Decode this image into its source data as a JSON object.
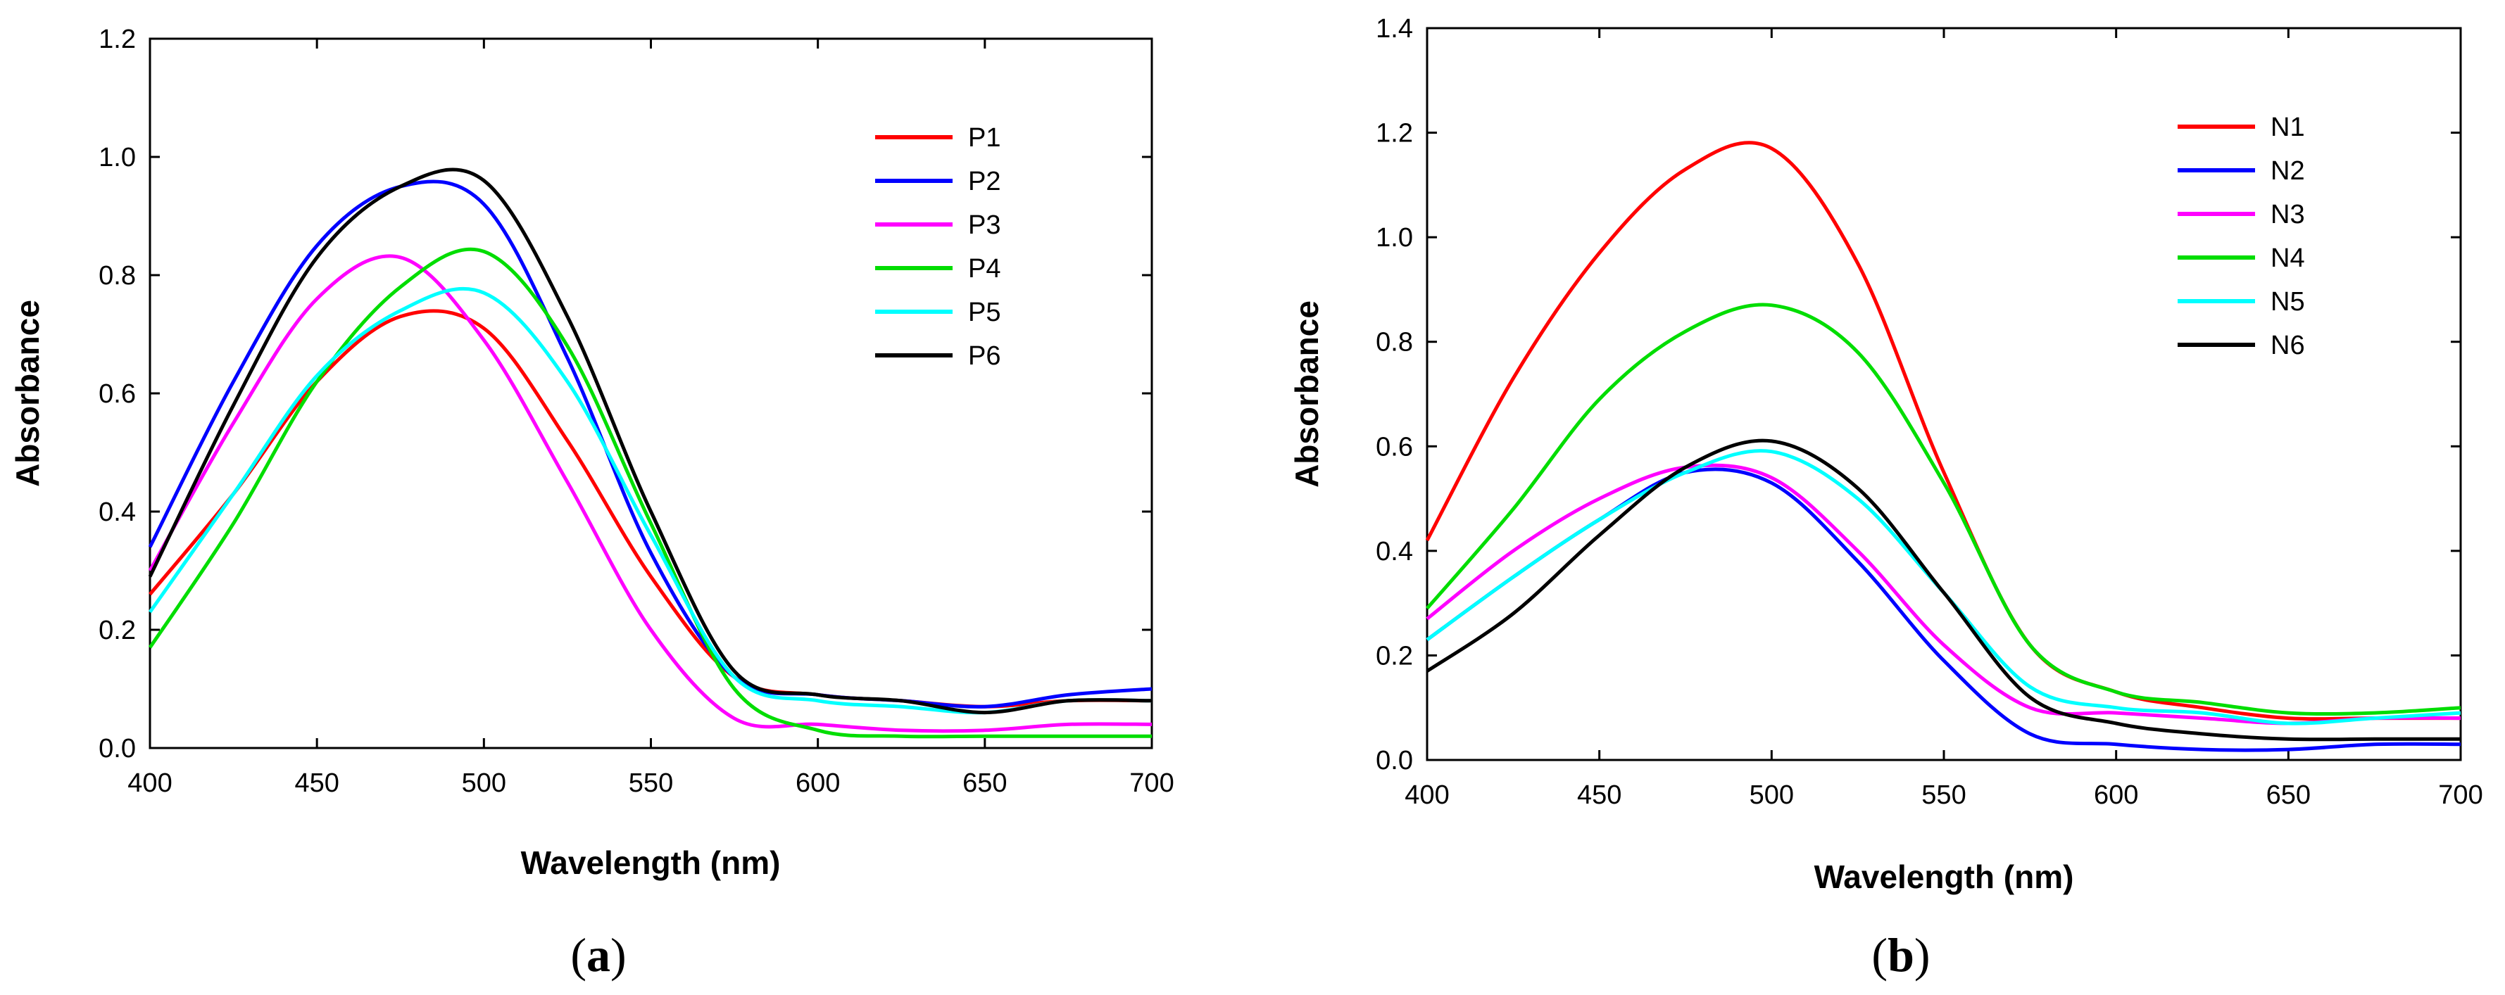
{
  "chart_data": [
    {
      "type": "line",
      "panel_label": "a",
      "title": "",
      "xlabel": "Wavelength (nm)",
      "ylabel": "Absorbance",
      "xlim": [
        400,
        700
      ],
      "ylim": [
        0,
        1.2
      ],
      "xticks": [
        400,
        450,
        500,
        550,
        600,
        650,
        700
      ],
      "yticks": [
        0.0,
        0.2,
        0.4,
        0.6,
        0.8,
        1.0,
        1.2
      ],
      "x_tick_labels": [
        "400",
        "450",
        "500",
        "550",
        "600",
        "650",
        "700"
      ],
      "y_tick_labels": [
        "0.0",
        "0.2",
        "0.4",
        "0.6",
        "0.8",
        "1.0",
        "1.2"
      ],
      "grid": false,
      "legend_position": "top-right",
      "x": [
        400,
        425,
        450,
        475,
        500,
        525,
        550,
        575,
        600,
        625,
        650,
        675,
        700
      ],
      "series": [
        {
          "name": "P1",
          "color": "#ff0000",
          "values": [
            0.26,
            0.43,
            0.62,
            0.73,
            0.71,
            0.52,
            0.29,
            0.12,
            0.09,
            0.08,
            0.07,
            0.08,
            0.08
          ]
        },
        {
          "name": "P2",
          "color": "#0000ff",
          "values": [
            0.34,
            0.62,
            0.85,
            0.95,
            0.92,
            0.66,
            0.33,
            0.12,
            0.09,
            0.08,
            0.07,
            0.09,
            0.1
          ]
        },
        {
          "name": "P3",
          "color": "#ff00ff",
          "values": [
            0.3,
            0.55,
            0.76,
            0.83,
            0.69,
            0.45,
            0.2,
            0.05,
            0.04,
            0.03,
            0.03,
            0.04,
            0.04
          ]
        },
        {
          "name": "P4",
          "color": "#00dd00",
          "values": [
            0.17,
            0.38,
            0.62,
            0.78,
            0.84,
            0.68,
            0.38,
            0.1,
            0.03,
            0.02,
            0.02,
            0.02,
            0.02
          ]
        },
        {
          "name": "P5",
          "color": "#00ffff",
          "values": [
            0.23,
            0.43,
            0.63,
            0.74,
            0.77,
            0.62,
            0.36,
            0.12,
            0.08,
            0.07,
            0.06,
            0.08,
            0.08
          ]
        },
        {
          "name": "P6",
          "color": "#000000",
          "values": [
            0.29,
            0.58,
            0.83,
            0.95,
            0.96,
            0.73,
            0.4,
            0.13,
            0.09,
            0.08,
            0.06,
            0.08,
            0.08
          ]
        }
      ]
    },
    {
      "type": "line",
      "panel_label": "b",
      "title": "",
      "xlabel": "Wavelength (nm)",
      "ylabel": "Absorbance",
      "xlim": [
        400,
        700
      ],
      "ylim": [
        0,
        1.4
      ],
      "xticks": [
        400,
        450,
        500,
        550,
        600,
        650,
        700
      ],
      "yticks": [
        0.0,
        0.2,
        0.4,
        0.6,
        0.8,
        1.0,
        1.2,
        1.4
      ],
      "x_tick_labels": [
        "400",
        "450",
        "500",
        "550",
        "600",
        "650",
        "700"
      ],
      "y_tick_labels": [
        "0.0",
        "0.2",
        "0.4",
        "0.6",
        "0.8",
        "1.0",
        "1.2",
        "1.4"
      ],
      "grid": false,
      "legend_position": "top-right",
      "x": [
        400,
        425,
        450,
        475,
        500,
        525,
        550,
        575,
        600,
        625,
        650,
        675,
        700
      ],
      "series": [
        {
          "name": "N1",
          "color": "#ff0000",
          "values": [
            0.42,
            0.73,
            0.97,
            1.13,
            1.17,
            0.95,
            0.55,
            0.22,
            0.13,
            0.1,
            0.08,
            0.08,
            0.08
          ]
        },
        {
          "name": "N2",
          "color": "#0000ff",
          "values": [
            0.23,
            0.35,
            0.46,
            0.55,
            0.53,
            0.38,
            0.19,
            0.05,
            0.03,
            0.02,
            0.02,
            0.03,
            0.03
          ]
        },
        {
          "name": "N3",
          "color": "#ff00ff",
          "values": [
            0.27,
            0.4,
            0.5,
            0.56,
            0.54,
            0.4,
            0.22,
            0.1,
            0.09,
            0.08,
            0.07,
            0.08,
            0.08
          ]
        },
        {
          "name": "N4",
          "color": "#00dd00",
          "values": [
            0.29,
            0.48,
            0.69,
            0.82,
            0.87,
            0.78,
            0.53,
            0.22,
            0.13,
            0.11,
            0.09,
            0.09,
            0.1
          ]
        },
        {
          "name": "N5",
          "color": "#00ffff",
          "values": [
            0.23,
            0.35,
            0.46,
            0.55,
            0.59,
            0.5,
            0.32,
            0.14,
            0.1,
            0.09,
            0.07,
            0.08,
            0.09
          ]
        },
        {
          "name": "N6",
          "color": "#000000",
          "values": [
            0.17,
            0.28,
            0.43,
            0.56,
            0.61,
            0.52,
            0.32,
            0.12,
            0.07,
            0.05,
            0.04,
            0.04,
            0.04
          ]
        }
      ]
    }
  ]
}
